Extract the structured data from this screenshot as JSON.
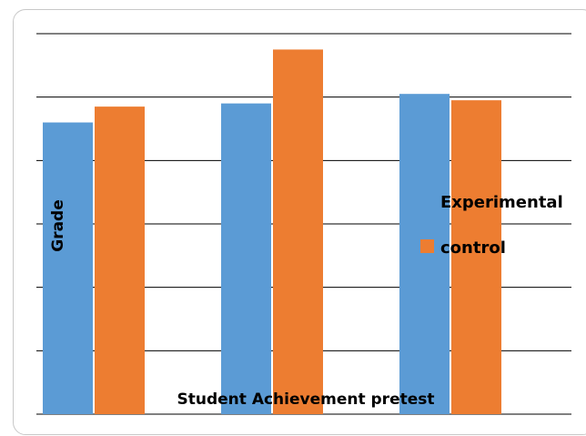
{
  "chart_data": {
    "type": "bar",
    "title": "",
    "xlabel": "Student Achievement  pretest",
    "ylabel": "Grade",
    "ylim": [
      0,
      6
    ],
    "grid": true,
    "legend_position": "right",
    "categories": [
      "",
      "",
      ""
    ],
    "series": [
      {
        "name": "Experimental",
        "color": "#5B9BD5",
        "values": [
          4.6,
          4.9,
          5.05
        ]
      },
      {
        "name": "control",
        "color": "#ED7D31",
        "values": [
          4.85,
          5.75,
          4.95
        ]
      }
    ]
  }
}
